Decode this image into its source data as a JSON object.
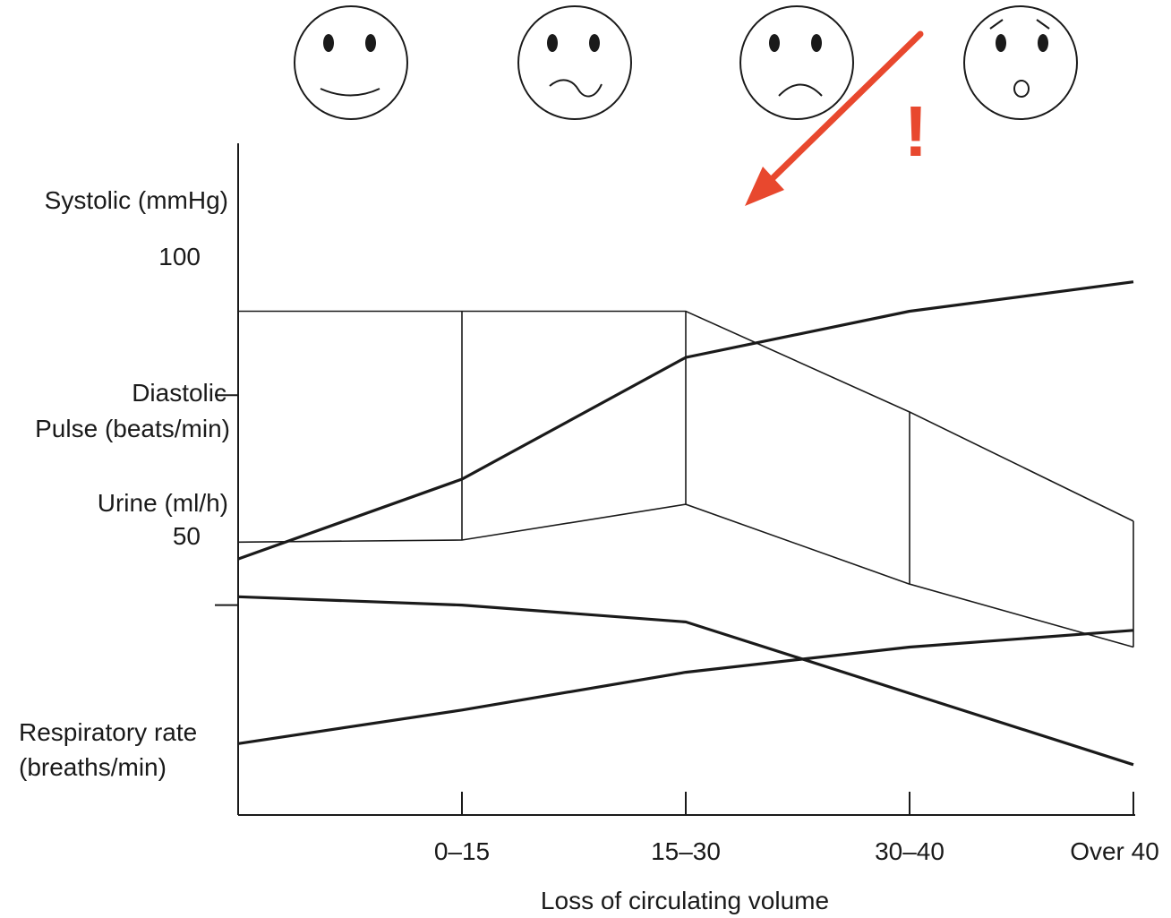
{
  "chart_data": {
    "type": "line",
    "title": "",
    "xlabel": "Loss of circulating volume",
    "x": [
      "",
      "0–15",
      "15–30",
      "30–40",
      "Over 40"
    ],
    "y_axis_labels": {
      "systolic": "Systolic (mmHg)",
      "tick_100": "100",
      "diastolic": "Diastolic",
      "pulse": "Pulse (beats/min)",
      "urine": "Urine (ml/h)",
      "tick_50": "50",
      "resp_line1": "Respiratory rate",
      "resp_line2": "(breaths/min)"
    },
    "ylim": [
      0,
      160
    ],
    "series": [
      {
        "name": "Systolic",
        "style": "thin",
        "values": [
          120,
          120,
          120,
          96,
          70
        ]
      },
      {
        "name": "Diastolic",
        "style": "thin",
        "values": [
          65,
          65.5,
          74,
          55,
          40
        ]
      },
      {
        "name": "Pulse",
        "style": "thick",
        "values": [
          61,
          80,
          109,
          120,
          127
        ]
      },
      {
        "name": "Urine",
        "style": "thick",
        "values": [
          52,
          50,
          46,
          29,
          12
        ]
      },
      {
        "name": "Respiratory rate",
        "style": "thick",
        "values": [
          17,
          25,
          34,
          40,
          44
        ]
      }
    ],
    "annotation": {
      "text": "!",
      "color": "#e8482e",
      "points_to": "Pulse crossing Systolic"
    },
    "faces": [
      "happy-face",
      "uneasy-face",
      "sad-face",
      "alarmed-face"
    ]
  }
}
